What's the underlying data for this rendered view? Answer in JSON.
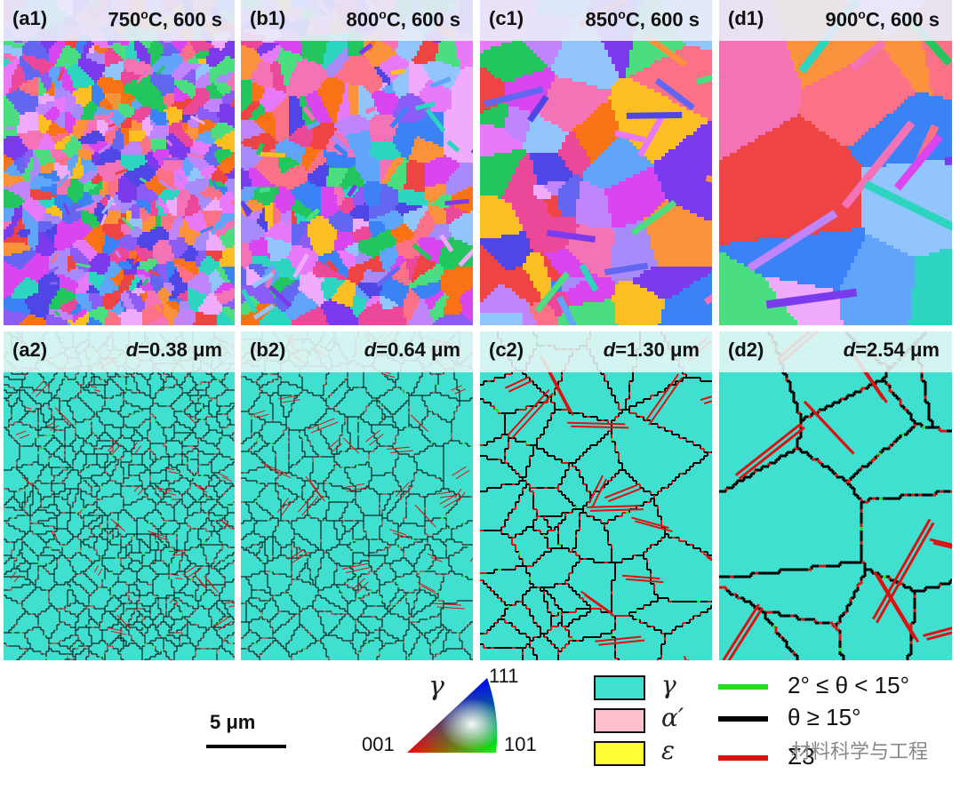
{
  "panels_top": [
    {
      "tag": "(a1)",
      "temp": "750",
      "deg": "o",
      "rest": "C, 600 s"
    },
    {
      "tag": "(b1)",
      "temp": "800",
      "deg": "o",
      "rest": "C, 600 s"
    },
    {
      "tag": "(c1)",
      "temp": "850",
      "deg": "o",
      "rest": "C, 600 s"
    },
    {
      "tag": "(d1)",
      "temp": "900",
      "deg": "o",
      "rest": "C, 600 s"
    }
  ],
  "panels_bottom": [
    {
      "tag": "(a2)",
      "d_symbol": "d",
      "d_value": "=0.38 μm"
    },
    {
      "tag": "(b2)",
      "d_symbol": "d",
      "d_value": "=0.64 μm"
    },
    {
      "tag": "(c2)",
      "d_symbol": "d",
      "d_value": "=1.30 μm"
    },
    {
      "tag": "(d2)",
      "d_symbol": "d",
      "d_value": "=2.54 μm"
    }
  ],
  "scale_bar": {
    "label": "5 μm"
  },
  "ipf": {
    "symbol": "γ",
    "corner_111": "111",
    "corner_001": "001",
    "corner_101": "101"
  },
  "phases": [
    {
      "symbol": "γ",
      "color": "#40e0d0"
    },
    {
      "symbol": "α′",
      "color": "#ffc0cb"
    },
    {
      "symbol": "ε",
      "color": "#ffff33"
    }
  ],
  "boundaries": [
    {
      "label": "2° ≤ θ < 15°",
      "color": "#22dd22"
    },
    {
      "label": "θ ≥ 15°",
      "color": "#000000"
    },
    {
      "label": "Σ3",
      "color": "#dd1111"
    }
  ],
  "watermark": "材料科学与工程",
  "colors": {
    "austenite": "#40e0d0",
    "hagb": "#000000",
    "twin": "#dd1111",
    "lagb": "#22dd22"
  }
}
